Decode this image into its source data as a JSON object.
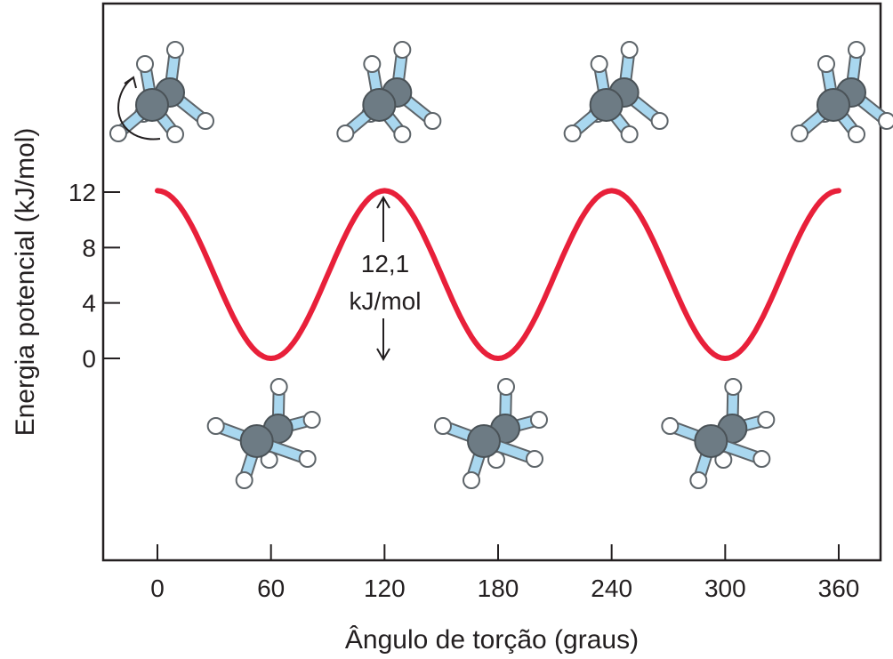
{
  "chart_data": {
    "type": "line",
    "xlabel": "Ângulo de torção (graus)",
    "ylabel": "Energia potencial (kJ/mol)",
    "x_ticks": [
      "0",
      "60",
      "120",
      "180",
      "240",
      "300",
      "360"
    ],
    "y_ticks": [
      "0",
      "4",
      "8",
      "12"
    ],
    "xlim": [
      0,
      360
    ],
    "ylim": [
      0,
      12
    ],
    "grid": false,
    "legend": "none",
    "series": [
      {
        "x": [
          0,
          15,
          30,
          45,
          60,
          75,
          90,
          105,
          120,
          135,
          150,
          165,
          180,
          195,
          210,
          225,
          240,
          255,
          270,
          285,
          300,
          315,
          330,
          345,
          360
        ],
        "y": [
          12.1,
          10.33,
          6.05,
          1.77,
          0,
          1.77,
          6.05,
          10.33,
          12.1,
          10.33,
          6.05,
          1.77,
          0,
          1.77,
          6.05,
          10.33,
          12.1,
          10.33,
          6.05,
          1.77,
          0,
          1.77,
          6.05,
          10.33,
          12.1
        ],
        "color": "#e8203a"
      }
    ],
    "annotation": {
      "line1": "12,1",
      "line2": "kJ/mol"
    },
    "molecule_images": {
      "eclipsed_angles": [
        0,
        120,
        240,
        360
      ],
      "staggered_angles": [
        60,
        180,
        300
      ],
      "carbon_color": "#6d7b84",
      "bond_color": "#a9d7ef",
      "hydrogen_color": "#ffffff"
    }
  }
}
